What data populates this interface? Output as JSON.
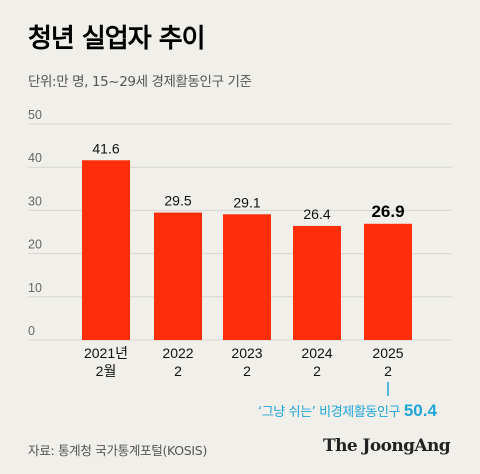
{
  "header": {
    "title": "청년 실업자 추이",
    "subtitle": "단위:만 명, 15~29세 경제활동인구 기준"
  },
  "chart_data": {
    "type": "bar",
    "title": "청년 실업자 추이",
    "subtitle": "단위:만 명, 15~29세 경제활동인구 기준",
    "categories": [
      [
        "2021년",
        "2월"
      ],
      [
        "2022",
        "2"
      ],
      [
        "2023",
        "2"
      ],
      [
        "2024",
        "2"
      ],
      [
        "2025",
        "2"
      ]
    ],
    "values": [
      41.6,
      29.5,
      29.1,
      26.4,
      26.9
    ],
    "value_labels": [
      "41.6",
      "29.5",
      "29.1",
      "26.4",
      "26.9"
    ],
    "highlight_index": 4,
    "ylim": [
      0,
      50
    ],
    "yticks": [
      0,
      10,
      20,
      30,
      40,
      50
    ],
    "grid": true,
    "bar_color": "#ff2e0a",
    "annotation": {
      "text": "‘그냥 쉬는’ 비경제활동인구",
      "value": "50.4",
      "color": "#1ea6d8"
    }
  },
  "footer": {
    "source": "자료: 통계청 국가통계포털(KOSIS)",
    "logo": "The JoongAng"
  },
  "colors": {
    "background": "#f0efea",
    "bar": "#ff2e0a",
    "accent": "#1ea6d8",
    "grid": "#d6d5d0"
  }
}
